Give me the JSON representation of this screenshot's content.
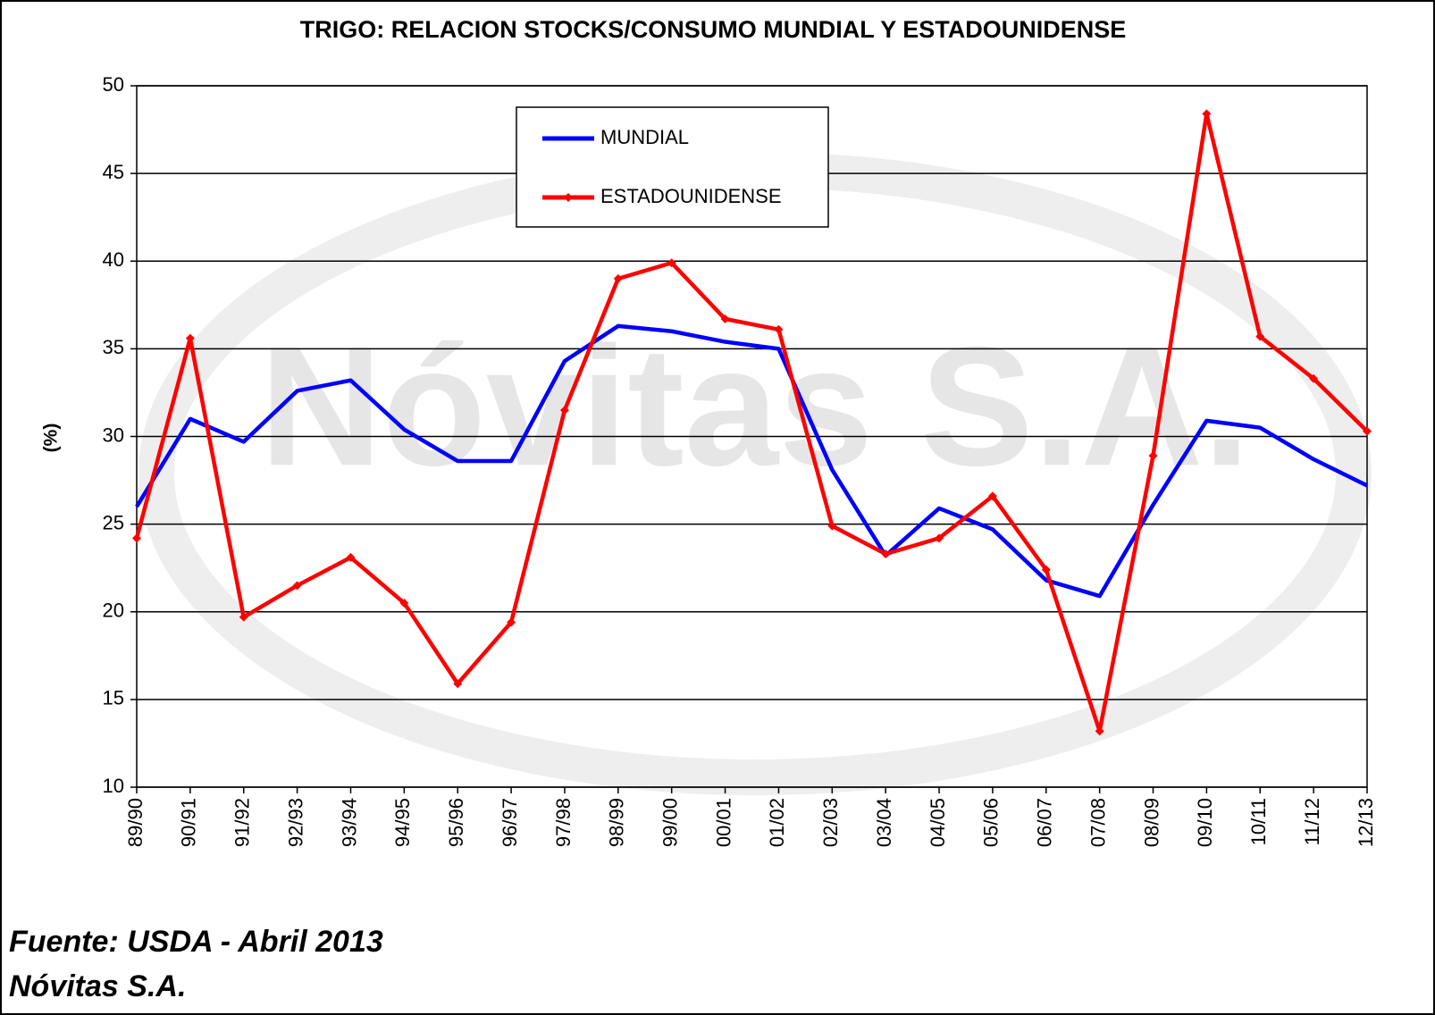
{
  "chart_data": {
    "type": "line",
    "title": "TRIGO: RELACION STOCKS/CONSUMO MUNDIAL Y ESTADOUNIDENSE",
    "y_label": "(%)",
    "categories": [
      "89/90",
      "90/91",
      "91/92",
      "92/93",
      "93/94",
      "94/95",
      "95/96",
      "96/97",
      "97/98",
      "98/99",
      "99/00",
      "00/01",
      "01/02",
      "02/03",
      "03/04",
      "04/05",
      "05/06",
      "06/07",
      "07/08",
      "08/09",
      "09/10",
      "10/11",
      "11/12",
      "12/13"
    ],
    "series": [
      {
        "name": "MUNDIAL",
        "color": "#0000ff",
        "values": [
          26.0,
          31.0,
          29.7,
          32.6,
          33.2,
          30.4,
          28.6,
          28.6,
          34.3,
          36.3,
          36.0,
          35.4,
          35.0,
          28.1,
          23.2,
          25.9,
          24.7,
          21.8,
          20.9,
          26.1,
          30.9,
          30.5,
          28.7,
          27.2
        ]
      },
      {
        "name": "ESTADOUNIDENSE",
        "color": "#ff0000",
        "values": [
          24.2,
          35.6,
          19.7,
          21.5,
          23.1,
          20.5,
          15.9,
          19.4,
          31.5,
          39.0,
          39.9,
          36.7,
          36.1,
          24.9,
          23.3,
          24.2,
          26.6,
          22.4,
          13.2,
          28.9,
          48.4,
          35.7,
          33.3,
          30.3
        ]
      }
    ],
    "ylim": [
      10,
      50
    ],
    "yticks": [
      10,
      15,
      20,
      25,
      30,
      35,
      40,
      45,
      50
    ],
    "grid": true,
    "source": "Fuente: USDA - Abril 2013",
    "author": "Nóvitas S.A.",
    "watermark": "Nóvitas S.A."
  }
}
